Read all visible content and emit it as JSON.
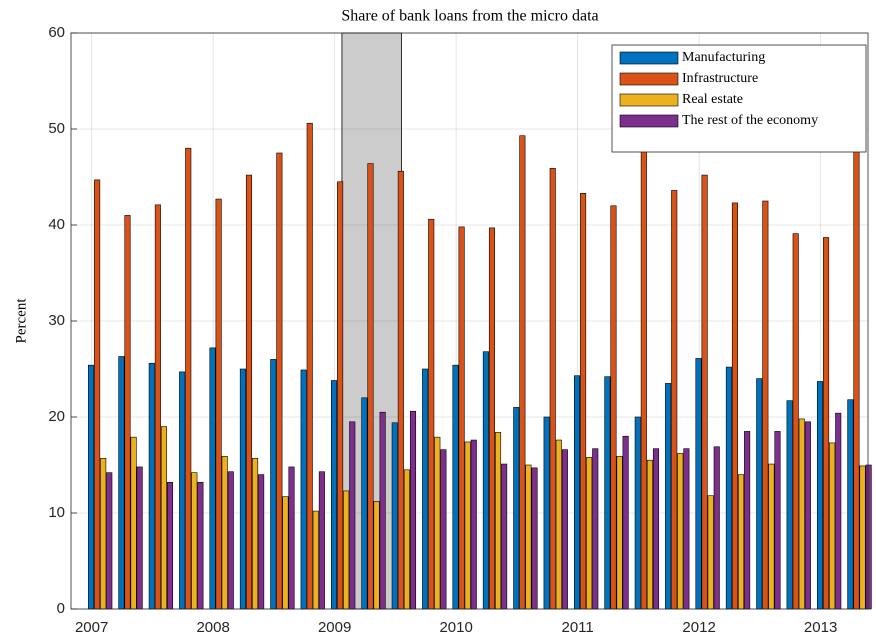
{
  "chart_data": {
    "type": "bar",
    "title": "Share of bank loans from the micro data",
    "y_label": "Percent",
    "x": [
      2007.07,
      2007.32,
      2007.57,
      2007.82,
      2008.07,
      2008.32,
      2008.57,
      2008.82,
      2009.07,
      2009.32,
      2009.57,
      2009.82,
      2010.07,
      2010.32,
      2010.57,
      2010.82,
      2011.07,
      2011.32,
      2011.57,
      2011.82,
      2012.07,
      2012.32,
      2012.57,
      2012.82,
      2013.07,
      2013.32
    ],
    "series": [
      {
        "name": "Manufacturing",
        "color": "#0072bd",
        "values": [
          25.4,
          26.3,
          25.6,
          24.7,
          27.2,
          25,
          26,
          24.9,
          23.8,
          22,
          19.4,
          25,
          25.4,
          26.8,
          21,
          20,
          24.3,
          24.2,
          20,
          23.5,
          26.1,
          25.2,
          24,
          21.7,
          23.7,
          21.8
        ]
      },
      {
        "name": "Infrastructure",
        "color": "#d95319",
        "values": [
          44.7,
          41,
          42.1,
          48,
          42.7,
          45.2,
          47.5,
          50.6,
          44.5,
          46.4,
          45.6,
          40.6,
          39.8,
          39.7,
          49.3,
          45.9,
          43.3,
          42,
          47.9,
          43.6,
          45.2,
          42.3,
          42.5,
          39.1,
          38.7,
          48.3
        ]
      },
      {
        "name": "Real estate",
        "color": "#edb120",
        "values": [
          15.7,
          17.9,
          19,
          14.2,
          15.9,
          15.7,
          11.7,
          10.2,
          12.3,
          11.2,
          14.5,
          17.9,
          17.4,
          18.4,
          15,
          17.6,
          15.8,
          15.9,
          15.5,
          16.2,
          11.8,
          14,
          15.1,
          19.8,
          17.3,
          14.9
        ]
      },
      {
        "name": "The rest of the economy",
        "color": "#7e2f8e",
        "values": [
          14.2,
          14.8,
          13.2,
          13.2,
          14.3,
          14,
          14.8,
          14.3,
          19.5,
          20.5,
          20.6,
          16.6,
          17.6,
          15.1,
          14.7,
          16.6,
          16.7,
          18,
          16.7,
          16.7,
          16.9,
          18.5,
          18.5,
          19.5,
          20.4,
          15
        ]
      }
    ],
    "shaded_region": [
      2009.06,
      2009.55
    ],
    "xlim": [
      2006.83,
      2013.39
    ],
    "xticks": [
      2007,
      2008,
      2009,
      2010,
      2011,
      2012,
      2013
    ],
    "ylim": [
      0,
      60
    ],
    "yticks": [
      0,
      10,
      20,
      30,
      40,
      50,
      60
    ],
    "grid": true,
    "legend_position": "northeast"
  }
}
